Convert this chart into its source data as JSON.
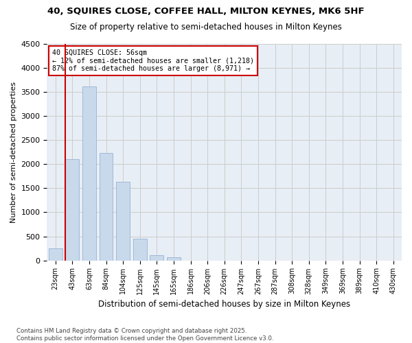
{
  "title_line1": "40, SQUIRES CLOSE, COFFEE HALL, MILTON KEYNES, MK6 5HF",
  "title_line2": "Size of property relative to semi-detached houses in Milton Keynes",
  "xlabel": "Distribution of semi-detached houses by size in Milton Keynes",
  "ylabel": "Number of semi-detached properties",
  "footnote": "Contains HM Land Registry data © Crown copyright and database right 2025.\nContains public sector information licensed under the Open Government Licence v3.0.",
  "bin_labels": [
    "23sqm",
    "43sqm",
    "63sqm",
    "84sqm",
    "104sqm",
    "125sqm",
    "145sqm",
    "165sqm",
    "186sqm",
    "206sqm",
    "226sqm",
    "247sqm",
    "267sqm",
    "287sqm",
    "308sqm",
    "328sqm",
    "349sqm",
    "369sqm",
    "389sqm",
    "410sqm",
    "430sqm"
  ],
  "bar_values": [
    250,
    2100,
    3620,
    2230,
    1630,
    450,
    110,
    60,
    0,
    0,
    0,
    0,
    0,
    0,
    0,
    0,
    0,
    0,
    0,
    0,
    0
  ],
  "bar_color": "#c9d9ec",
  "bar_edge_color": "#a0b8d8",
  "grid_color": "#cccccc",
  "background_color": "#e8eef5",
  "vline_color": "#cc0000",
  "vline_x": 0.6,
  "annotation_title": "40 SQUIRES CLOSE: 56sqm",
  "annotation_line1": "← 12% of semi-detached houses are smaller (1,218)",
  "annotation_line2": "87% of semi-detached houses are larger (8,971) →",
  "annotation_box_color": "#cc0000",
  "ylim": [
    0,
    4500
  ],
  "yticks": [
    0,
    500,
    1000,
    1500,
    2000,
    2500,
    3000,
    3500,
    4000,
    4500
  ]
}
